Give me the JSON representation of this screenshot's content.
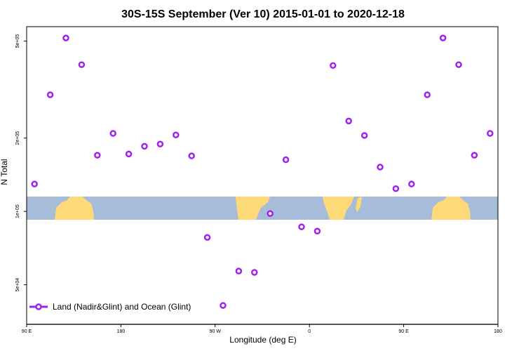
{
  "chart_data": {
    "type": "scatter",
    "title": "30S-15S September (Ver 10)   2015-01-01 to 2020-12-18",
    "xlabel": "Longitude (deg E)",
    "ylabel": "N Total",
    "yscale": "log",
    "xlim": [
      90,
      540
    ],
    "ylim": [
      34400,
      573000
    ],
    "xticks": [
      90,
      180,
      270,
      360,
      450,
      540
    ],
    "xtick_labels": [
      "90 E",
      "180",
      "90 W",
      "0",
      "90 E",
      "180"
    ],
    "yticks": [
      50000,
      100000,
      200000,
      500000
    ],
    "ytick_labels": [
      "5e+04",
      "1e+05",
      "2e+05",
      "5e+05"
    ],
    "legend": {
      "position": "bottom-left",
      "entries": [
        "Land (Nadir&Glint) and Ocean (Glint)"
      ]
    },
    "series": [
      {
        "name": "Land (Nadir&Glint) and Ocean (Glint)",
        "color": "#a020f0",
        "x": [
          97.5,
          112.5,
          127.5,
          142.5,
          157.5,
          172.5,
          187.5,
          202.5,
          217.5,
          232.5,
          247.5,
          262.5,
          277.5,
          292.5,
          307.5,
          322.5,
          337.5,
          352.5,
          367.5,
          382.5,
          397.5,
          412.5,
          427.5,
          442.5,
          457.5,
          472.5,
          487.5,
          502.5,
          517.5,
          532.5
        ],
        "y": [
          129500,
          301000,
          515000,
          400000,
          170000,
          209000,
          172000,
          185000,
          189000,
          206000,
          169000,
          78200,
          41100,
          56900,
          56200,
          98000,
          163000,
          86400,
          83000,
          397000,
          235000,
          205000,
          152000,
          124000,
          129500,
          301000,
          515000,
          400000,
          170000,
          209000
        ]
      }
    ]
  }
}
